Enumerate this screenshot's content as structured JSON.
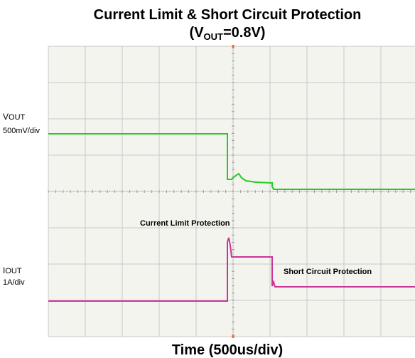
{
  "title": "Current Limit & Short Circuit Protection",
  "subtitle": {
    "prefix": "(V",
    "subscript": "OUT",
    "suffix": "=0.8V)"
  },
  "traces": [
    {
      "name": "V",
      "name_sub": "OUT",
      "scale": "500mV/div",
      "color": "#22cc22"
    },
    {
      "name": "I",
      "name_sub": "OUT",
      "scale": "1A/div",
      "color": "#cc3399"
    }
  ],
  "annotations": [
    "Current Limit Protection",
    "Short Circuit Protection"
  ],
  "x_axis_label": "Time (500us/div)"
}
